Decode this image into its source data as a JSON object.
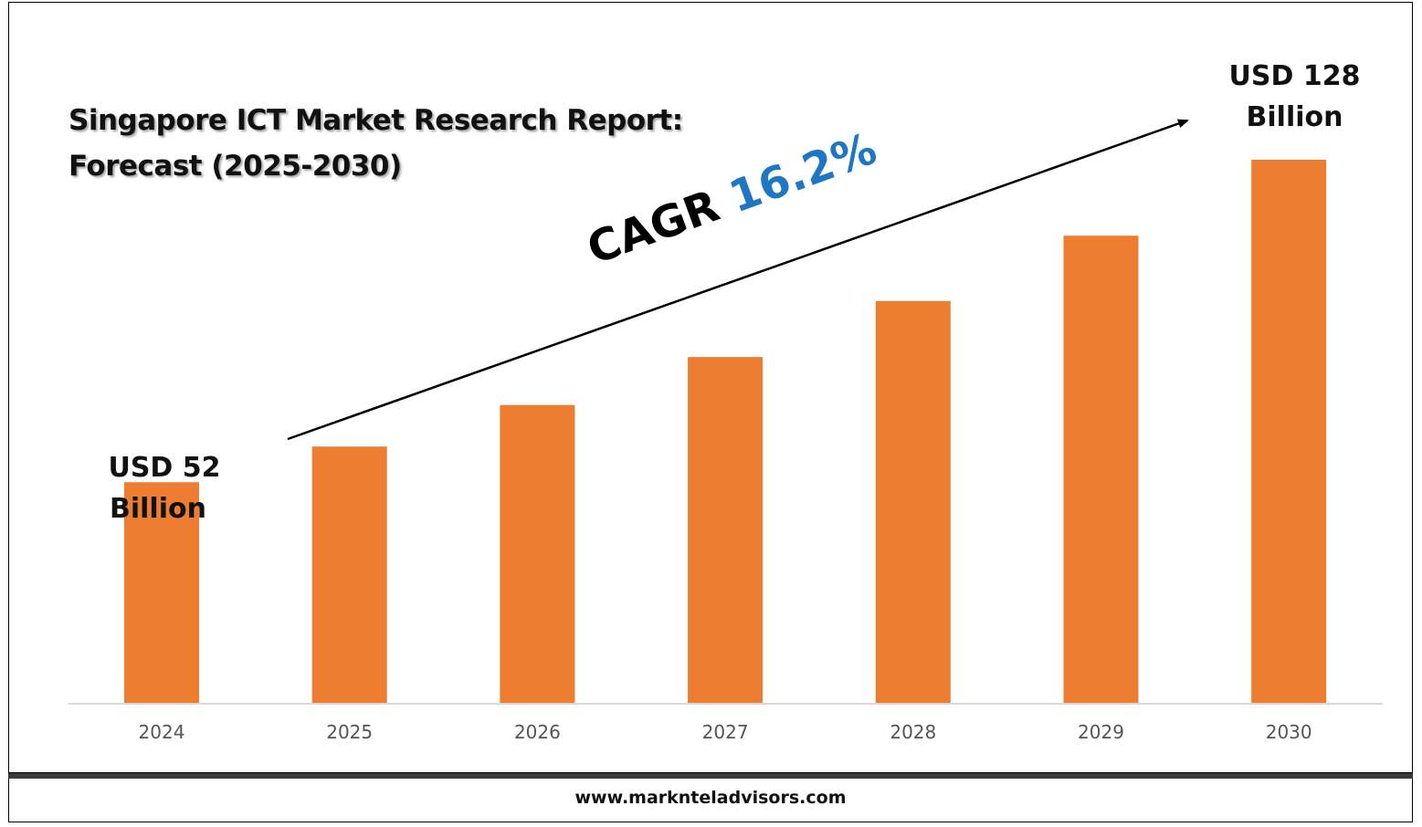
{
  "title": {
    "line1": "Singapore ICT Market Research Report:",
    "line2": "Forecast (2025-2030)"
  },
  "annotations": {
    "start": {
      "line1": "USD 52",
      "line2": "Billion"
    },
    "end": {
      "line1": "USD 128",
      "line2": "Billion"
    },
    "cagr_label": "CAGR",
    "cagr_value": "16.2%"
  },
  "footer": {
    "url": "www.marknteladvisors.com"
  },
  "colors": {
    "bar": "#ed7d31",
    "cagr_value": "#1f77c4",
    "axis": "#d9d9d9",
    "tick_text": "#555555"
  },
  "chart_data": {
    "type": "bar",
    "categories": [
      "2024",
      "2025",
      "2026",
      "2027",
      "2028",
      "2029",
      "2030"
    ],
    "values": [
      52,
      60.4,
      70.2,
      81.5,
      94.7,
      110.1,
      128
    ],
    "title": "Singapore ICT Market Research Report: Forecast (2025-2030)",
    "ylim": [
      0,
      128
    ],
    "grid": false,
    "legend": "none"
  }
}
